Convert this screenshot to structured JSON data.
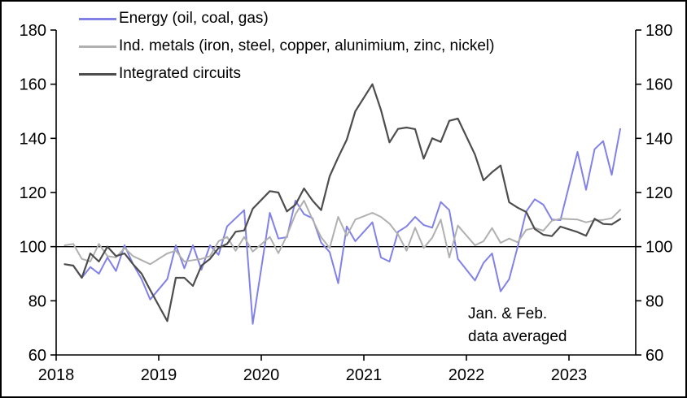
{
  "chart_data": {
    "type": "line",
    "title": "",
    "x_axis": {
      "tick_labels": [
        "2018",
        "2019",
        "2020",
        "2021",
        "2022",
        "2023"
      ]
    },
    "y_axis": {
      "ticks": [
        180,
        160,
        140,
        120,
        100,
        80,
        60
      ],
      "range": [
        60,
        180
      ],
      "reference_line": 100,
      "dual_axis": true
    },
    "frequency": "monthly, Jan & Feb combined (11 points per year), ending Jul 2023",
    "series": [
      {
        "name": "Energy (oil, coal, gas)",
        "color": "#8181e8",
        "width": 2,
        "values": [
          93.5,
          93,
          88.5,
          92.5,
          90,
          96,
          91,
          100.5,
          93.5,
          88,
          80.5,
          88,
          100.5,
          92,
          100.5,
          91.5,
          100.5,
          97,
          107.5,
          110.5,
          113.5,
          71.5,
          112.5,
          103,
          103.5,
          117,
          112,
          110.5,
          101.5,
          98,
          86.5,
          107.5,
          102,
          109,
          96,
          94.5,
          105.5,
          107.5,
          111,
          108,
          107,
          116.5,
          113.5,
          95.5,
          87.5,
          94,
          97.5,
          83.5,
          88,
          100,
          113,
          117.5,
          115.5,
          110,
          109.8,
          135,
          121,
          136,
          139,
          126.5,
          143.5
        ]
      },
      {
        "name": "Ind. metals (iron, steel, copper, alunimium, zinc, nickel)",
        "color": "#b0b0b0",
        "width": 2,
        "values": [
          100.5,
          101,
          95.5,
          94.5,
          101,
          96.5,
          96,
          99.5,
          96.5,
          95,
          93.5,
          97.5,
          98.5,
          94.5,
          95,
          95.5,
          96.5,
          102,
          103.6,
          98.5,
          103.6,
          98.2,
          103.6,
          97.6,
          104.1,
          112,
          117,
          110,
          103.5,
          99.5,
          111,
          104,
          110,
          112.5,
          111,
          108.5,
          104.5,
          98.5,
          107,
          99.5,
          103.3,
          110,
          96,
          107.8,
          100.5,
          102,
          106.9,
          101.4,
          103,
          101.6,
          106.2,
          106.9,
          105.9,
          109.6,
          110.3,
          110,
          109,
          109.7,
          109.9,
          110.5,
          113.6
        ]
      },
      {
        "name": "Integrated circuits",
        "color": "#4d4d4d",
        "width": 2.2,
        "values": [
          93.5,
          93,
          88.5,
          97.5,
          94.5,
          100,
          96.5,
          97.5,
          93.5,
          90,
          84,
          72.5,
          88.5,
          88.5,
          85.5,
          93,
          95.5,
          99.5,
          101,
          105.5,
          106,
          114,
          120.5,
          120,
          113,
          115.5,
          121.5,
          117,
          113.5,
          126,
          133,
          139.5,
          150,
          160,
          150.5,
          138.5,
          143.5,
          144,
          143.4,
          132.5,
          140,
          138.7,
          146.5,
          147.3,
          134,
          124.5,
          127.5,
          130,
          116.4,
          114.4,
          112.8,
          106.5,
          104.4,
          103.9,
          107.4,
          105.4,
          104,
          110.3,
          108.4,
          108.2,
          110.2
        ]
      }
    ],
    "annotation": {
      "line1": "Jan. & Feb.",
      "line2": "data averaged"
    },
    "legend_position": "top-left"
  }
}
